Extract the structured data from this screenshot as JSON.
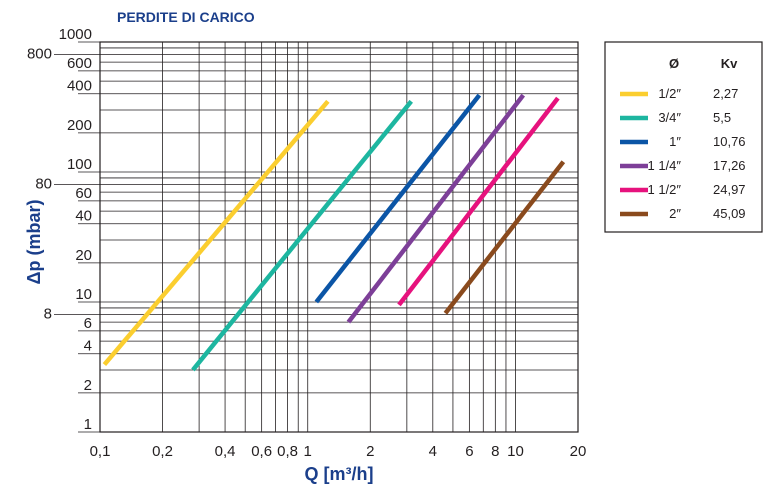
{
  "chart_data": {
    "type": "line",
    "title": "PERDITE DI CARICO",
    "xlabel": "Q [m³/h]",
    "ylabel": "Δp (mbar)",
    "x_scale": "log",
    "y_scale": "log",
    "xlim": [
      0.1,
      20
    ],
    "ylim": [
      1,
      1000
    ],
    "grid": true,
    "x_ticks": [
      {
        "v": 0.1,
        "label": "0,1"
      },
      {
        "v": 0.2,
        "label": "0,2"
      },
      {
        "v": 0.4,
        "label": "0,4"
      },
      {
        "v": 0.6,
        "label": "0,6"
      },
      {
        "v": 0.8,
        "label": "0,8"
      },
      {
        "v": 1,
        "label": "1"
      },
      {
        "v": 2,
        "label": "2"
      },
      {
        "v": 4,
        "label": "4"
      },
      {
        "v": 6,
        "label": "6"
      },
      {
        "v": 8,
        "label": "8"
      },
      {
        "v": 10,
        "label": "10"
      },
      {
        "v": 20,
        "label": "20"
      }
    ],
    "y_ticks_right": [
      {
        "v": 1,
        "label": "1"
      },
      {
        "v": 2,
        "label": "2"
      },
      {
        "v": 4,
        "label": "4"
      },
      {
        "v": 6,
        "label": "6"
      },
      {
        "v": 10,
        "label": "10"
      },
      {
        "v": 20,
        "label": "20"
      },
      {
        "v": 40,
        "label": "40"
      },
      {
        "v": 60,
        "label": "60"
      },
      {
        "v": 100,
        "label": "100"
      },
      {
        "v": 200,
        "label": "200"
      },
      {
        "v": 400,
        "label": "400"
      },
      {
        "v": 600,
        "label": "600"
      },
      {
        "v": 1000,
        "label": "1000"
      }
    ],
    "y_ticks_left": [
      {
        "v": 8,
        "label": "8"
      },
      {
        "v": 80,
        "label": "80"
      },
      {
        "v": 800,
        "label": "800"
      }
    ],
    "legend": {
      "position": "right",
      "header_size": "Ø",
      "header_kv": "Kv"
    },
    "series": [
      {
        "name": "1/2″",
        "kv": "2,27",
        "color": "#fbce2f",
        "points": [
          [
            0.105,
            3.3
          ],
          [
            1.25,
            350
          ]
        ]
      },
      {
        "name": "3/4″",
        "kv": "5,5",
        "color": "#1db6a0",
        "points": [
          [
            0.28,
            3.0
          ],
          [
            3.15,
            350
          ]
        ]
      },
      {
        "name": "1″",
        "kv": "10,76",
        "color": "#0b55a6",
        "points": [
          [
            1.1,
            10
          ],
          [
            6.7,
            390
          ]
        ]
      },
      {
        "name": "1 1/4″",
        "kv": "17,26",
        "color": "#7d3f98",
        "points": [
          [
            1.57,
            7.0
          ],
          [
            10.9,
            390
          ]
        ]
      },
      {
        "name": "1 1/2″",
        "kv": "24,97",
        "color": "#e6127d",
        "points": [
          [
            2.75,
            9.5
          ],
          [
            16.0,
            370
          ]
        ]
      },
      {
        "name": "2″",
        "kv": "45,09",
        "color": "#8a4a1d",
        "points": [
          [
            4.6,
            8.2
          ],
          [
            17.0,
            120
          ]
        ]
      }
    ]
  }
}
